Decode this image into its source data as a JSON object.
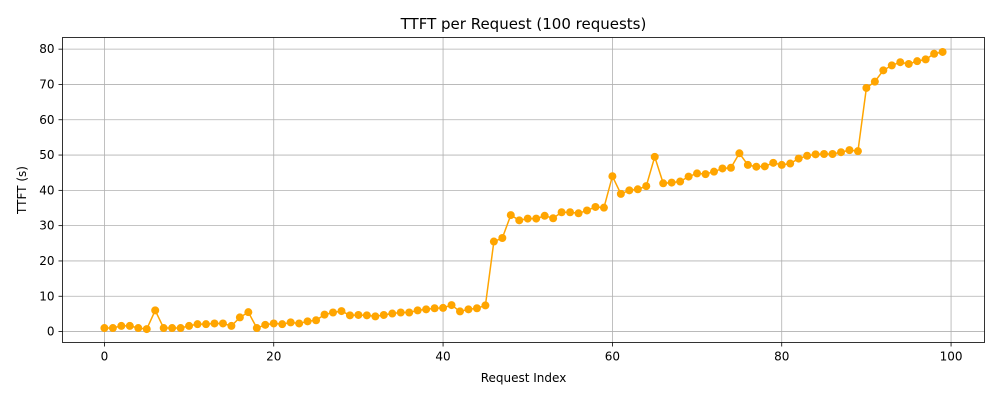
{
  "chart_data": {
    "type": "line",
    "title": "TTFT per Request (100 requests)",
    "xlabel": "Request Index",
    "ylabel": "TTFT (s)",
    "xlim": [
      -4.95,
      103.95
    ],
    "ylim": [
      -3.1,
      83.3
    ],
    "xticks": [
      0,
      20,
      40,
      60,
      80,
      100
    ],
    "yticks": [
      0,
      10,
      20,
      30,
      40,
      50,
      60,
      70,
      80
    ],
    "grid": true,
    "color": "#ffa500",
    "series": [
      {
        "x": [
          0,
          1,
          2,
          3,
          4,
          5,
          6,
          7,
          8,
          9,
          10,
          11,
          12,
          13,
          14,
          15,
          16,
          17,
          18,
          19,
          20,
          21,
          22,
          23,
          24,
          25,
          26,
          27,
          28,
          29,
          30,
          31,
          32,
          33,
          34,
          35,
          36,
          37,
          38,
          39,
          40,
          41,
          42,
          43,
          44,
          45,
          46,
          47,
          48,
          49,
          50,
          51,
          52,
          53,
          54,
          55,
          56,
          57,
          58,
          59,
          60,
          61,
          62,
          63,
          64,
          65,
          66,
          67,
          68,
          69,
          70,
          71,
          72,
          73,
          74,
          75,
          76,
          77,
          78,
          79,
          80,
          81,
          82,
          83,
          84,
          85,
          86,
          87,
          88,
          89,
          90,
          91,
          92,
          93,
          94,
          95,
          96,
          97,
          98,
          99
        ],
        "values": [
          1.0,
          1.0,
          1.6,
          1.6,
          1.0,
          0.7,
          6.0,
          1.0,
          1.0,
          1.0,
          1.6,
          2.1,
          2.1,
          2.3,
          2.3,
          1.6,
          4.0,
          5.5,
          1.0,
          1.9,
          2.3,
          2.1,
          2.6,
          2.3,
          2.9,
          3.2,
          4.8,
          5.4,
          5.8,
          4.6,
          4.7,
          4.6,
          4.3,
          4.7,
          5.1,
          5.4,
          5.4,
          6.0,
          6.3,
          6.6,
          6.7,
          7.5,
          5.7,
          6.3,
          6.6,
          7.4,
          25.5,
          26.5,
          33.0,
          31.5,
          32.0,
          32.0,
          32.8,
          32.1,
          33.8,
          33.8,
          33.5,
          34.3,
          35.3,
          35.1,
          44.0,
          39.0,
          40.0,
          40.3,
          41.2,
          49.5,
          42.0,
          42.2,
          42.5,
          43.9,
          44.8,
          44.6,
          45.3,
          46.2,
          46.4,
          50.5,
          47.2,
          46.7,
          46.8,
          47.8,
          47.2,
          47.6,
          49.0,
          49.8,
          50.2,
          50.3,
          50.3,
          50.8,
          51.4,
          51.1,
          69.0,
          70.8,
          74.0,
          75.4,
          76.3,
          75.8,
          76.6,
          77.1,
          78.7,
          79.2
        ]
      }
    ]
  }
}
